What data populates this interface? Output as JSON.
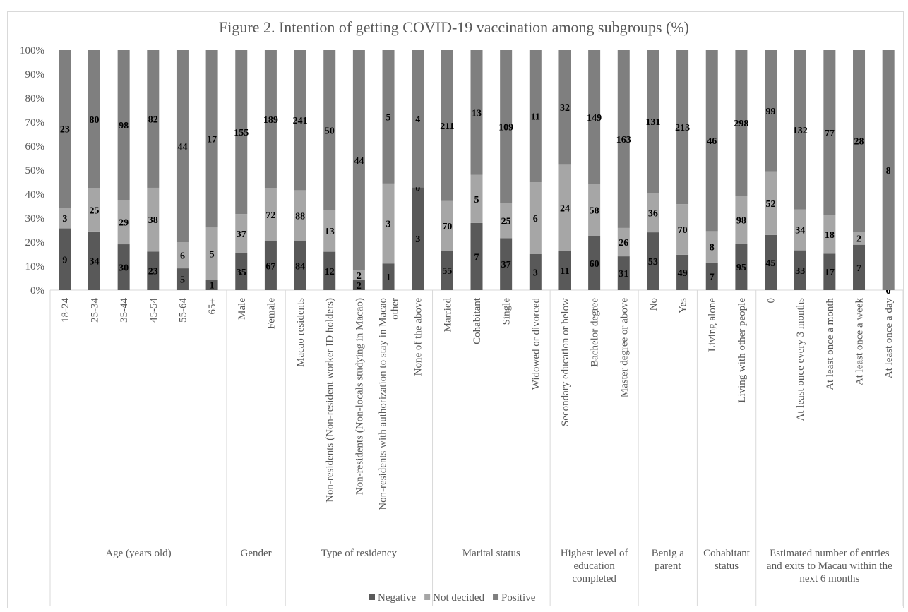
{
  "chart_data": {
    "type": "bar",
    "stacked": "percent",
    "title": "Figure 2. Intention of getting COVID-19 vaccination among subgroups (%)",
    "xlabel": "",
    "ylabel": "",
    "ylim": [
      0,
      100
    ],
    "yticks": [
      "0%",
      "10%",
      "20%",
      "30%",
      "40%",
      "50%",
      "60%",
      "70%",
      "80%",
      "90%",
      "100%"
    ],
    "grid": false,
    "legend_position": "bottom",
    "colors": {
      "Negative": "#595959",
      "Not decided": "#a6a6a6",
      "Positive": "#7f7f7f"
    },
    "groups": [
      {
        "name": "Age (years old)",
        "lines": [
          "Age (years old)"
        ],
        "categories": [
          "18-24",
          "25-34",
          "35-44",
          "45-54",
          "55-64",
          "65+"
        ]
      },
      {
        "name": "Gender",
        "lines": [
          "Gender"
        ],
        "categories": [
          "Male",
          "Female"
        ]
      },
      {
        "name": "Type of residency",
        "lines": [
          "Type of residency"
        ],
        "categories": [
          "Macao residents",
          "Non-residents (Non-resident worker ID holders)",
          "Non-residents (Non-locals studying in Macao)",
          "Non-residents with authorization to stay in Macao other",
          "None of the above"
        ]
      },
      {
        "name": "Marital status",
        "lines": [
          "Marital status"
        ],
        "categories": [
          "Married",
          "Cohabitant",
          "Single",
          "Widowed or divorced"
        ]
      },
      {
        "name": "Highest level of education completed",
        "lines": [
          "Highest level of",
          "education",
          "completed"
        ],
        "categories": [
          "Secondary education or below",
          "Bachelor degree",
          "Master degree or above"
        ]
      },
      {
        "name": "Benig a parent",
        "lines": [
          "Benig a",
          "parent"
        ],
        "categories": [
          "No",
          "Yes"
        ]
      },
      {
        "name": "Cohabitant status",
        "lines": [
          "Cohabitant",
          "status"
        ],
        "categories": [
          "Living alone",
          "Living with other people"
        ]
      },
      {
        "name": "Estimated number of entries and exits to Macau within the next 6 months",
        "lines": [
          "Estimated number of entries",
          "and exits to Macau within the",
          "next 6 months"
        ],
        "categories": [
          "0",
          "At least once every 3 months",
          "At least once a month",
          "At least once a week",
          "At least once a day"
        ]
      }
    ],
    "category_label_lines": {
      "Non-residents with authorization to stay in Macao other": [
        "Non-residents with authorization to stay in Macao",
        "other"
      ]
    },
    "series": [
      {
        "name": "Negative",
        "values": [
          9,
          34,
          30,
          23,
          5,
          1,
          35,
          67,
          84,
          12,
          2,
          1,
          3,
          55,
          7,
          37,
          3,
          11,
          60,
          31,
          53,
          49,
          7,
          95,
          45,
          33,
          17,
          7,
          0
        ]
      },
      {
        "name": "Not decided",
        "values": [
          3,
          25,
          29,
          38,
          6,
          5,
          37,
          72,
          88,
          13,
          2,
          3,
          0,
          70,
          5,
          25,
          6,
          24,
          58,
          26,
          36,
          70,
          8,
          98,
          52,
          34,
          18,
          2,
          0
        ]
      },
      {
        "name": "Positive",
        "values": [
          23,
          80,
          98,
          82,
          44,
          17,
          155,
          189,
          241,
          50,
          44,
          5,
          4,
          211,
          13,
          109,
          11,
          32,
          149,
          163,
          131,
          213,
          46,
          298,
          99,
          132,
          77,
          28,
          8
        ]
      }
    ]
  }
}
